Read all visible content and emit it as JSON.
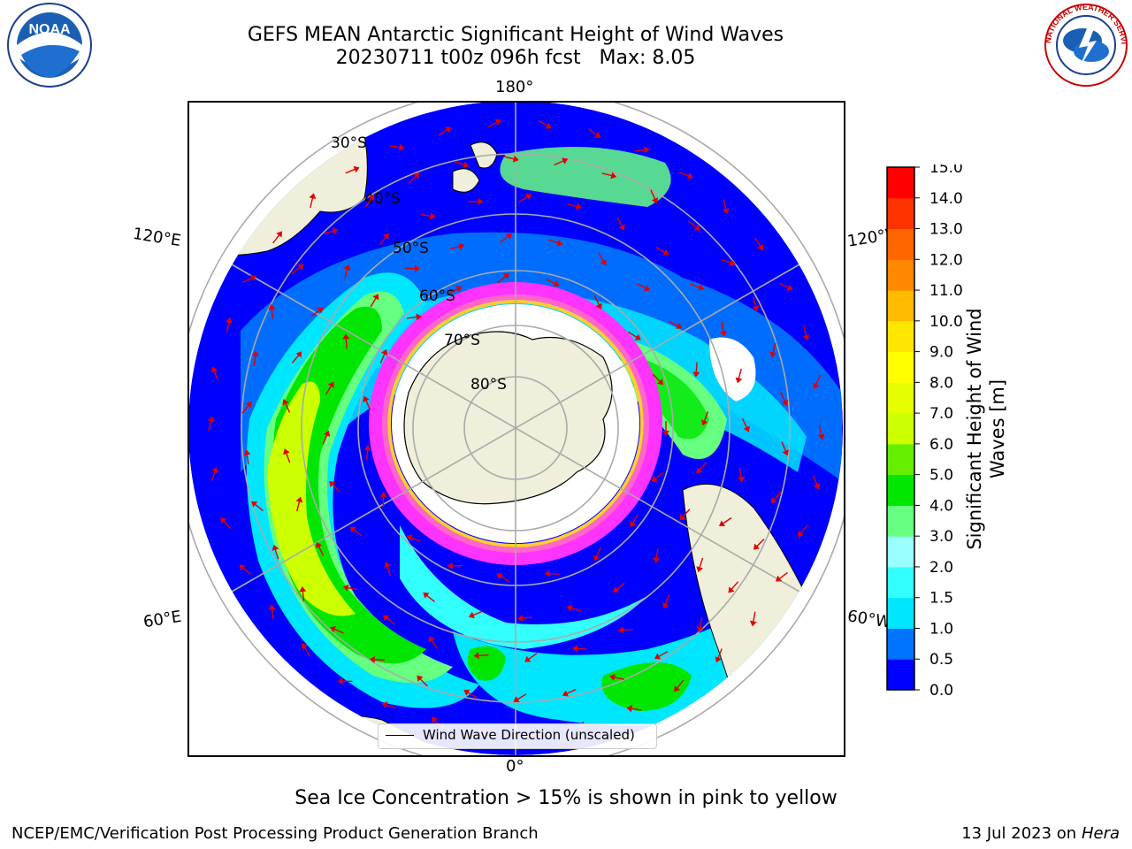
{
  "header": {
    "title_line1": "GEFS MEAN Antarctic Significant Height of Wind Waves",
    "title_line2": "20230711 t00z 096h fcst   Max: 8.05"
  },
  "map": {
    "projection": "south-polar-stereographic",
    "meridian_labels": {
      "top": "180°",
      "bottom": "0°",
      "left_upper": "120°E",
      "right_upper": "120°W",
      "left_lower": "60°E",
      "right_lower": "60°W"
    },
    "latitude_labels": [
      "30°S",
      "40°S",
      "50°S",
      "60°S",
      "70°S",
      "80°S"
    ],
    "land_color": "#efefdb",
    "arrow_color": "#e00000",
    "sea_ice_colors": [
      "#ff33ff",
      "#ff66cc",
      "#ffcc33"
    ]
  },
  "legend": {
    "label": "Wind Wave Direction (unscaled)"
  },
  "colorbar": {
    "label": "Significant Height of Wind Waves [m]",
    "ticks": [
      "0.0",
      "0.5",
      "1.0",
      "1.5",
      "2.0",
      "3.0",
      "4.0",
      "5.0",
      "6.0",
      "7.0",
      "8.0",
      "9.0",
      "10.0",
      "11.0",
      "12.0",
      "13.0",
      "14.0",
      "15.0"
    ],
    "colors": [
      "#0000ff",
      "#0073ff",
      "#00e6ff",
      "#33ffff",
      "#99ffff",
      "#66ff80",
      "#00e600",
      "#66ee00",
      "#ccff00",
      "#e6ff00",
      "#ffff00",
      "#ffe600",
      "#ffbb00",
      "#ff8800",
      "#ff6600",
      "#ff3300",
      "#ff0000"
    ]
  },
  "note": "Sea Ice Concentration > 15% is shown in pink to yellow",
  "footer": {
    "left": "NCEP/EMC/Verification Post Processing Product Generation Branch",
    "right_prefix": "13 Jul 2023 on ",
    "right_em": "Hera"
  },
  "logos": {
    "noaa_text": "NOAA",
    "nws_text": "NATIONAL WEATHER SERVICE"
  }
}
